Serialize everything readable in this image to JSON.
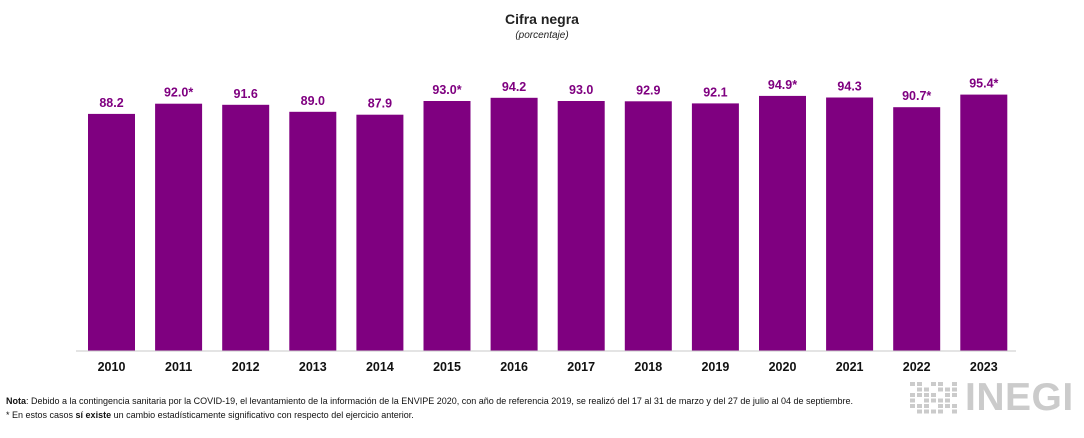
{
  "colors": {
    "bar": "#7f0080",
    "label": "#7f0080",
    "axis_line": "#c8c8c8",
    "logo_gray": "#cbcbcb"
  },
  "chart_data": {
    "type": "bar",
    "title": "Cifra negra",
    "subtitle": "(porcentaje)",
    "categories": [
      "2010",
      "2011",
      "2012",
      "2013",
      "2014",
      "2015",
      "2016",
      "2017",
      "2018",
      "2019",
      "2020",
      "2021",
      "2022",
      "2023"
    ],
    "values": [
      88.2,
      92.0,
      91.6,
      89.0,
      87.9,
      93.0,
      94.2,
      93.0,
      92.9,
      92.1,
      94.9,
      94.3,
      90.7,
      95.4
    ],
    "data_labels": [
      "88.2",
      "92.0*",
      "91.6",
      "89.0",
      "87.9",
      "93.0*",
      "94.2",
      "93.0",
      "92.9",
      "92.1",
      "94.9*",
      "94.3",
      "90.7*",
      "95.4*"
    ],
    "ylim": [
      0,
      100
    ],
    "grid": false,
    "legend": "none",
    "xlabel": "",
    "ylabel": ""
  },
  "footnotes": {
    "nota_label": "Nota",
    "nota_text": ": Debido a la contingencia sanitaria por la COVID-19, el levantamiento de la información de la ENVIPE 2020, con año de referencia 2019, se realizó del 17 al 31 de marzo y del 27 de julio al 04 de septiembre.",
    "asterisk_pre": "* En estos casos ",
    "asterisk_bold": "sí existe",
    "asterisk_post": " un cambio estadísticamente significativo con respecto del ejercicio anterior."
  },
  "logo": {
    "text": "INEGI",
    "icon": "inegi-dots-icon"
  }
}
